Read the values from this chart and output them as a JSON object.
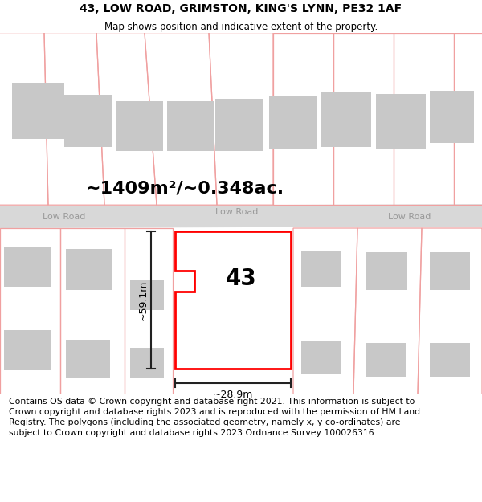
{
  "title": "43, LOW ROAD, GRIMSTON, KING'S LYNN, PE32 1AF",
  "subtitle": "Map shows position and indicative extent of the property.",
  "area_label": "~1409m²/~0.348ac.",
  "dim_width": "~28.9m",
  "dim_height": "~59.1m",
  "street_label": "Low Road",
  "number_label": "43",
  "footer": "Contains OS data © Crown copyright and database right 2021. This information is subject to Crown copyright and database rights 2023 and is reproduced with the permission of HM Land Registry. The polygons (including the associated geometry, namely x, y co-ordinates) are subject to Crown copyright and database rights 2023 Ordnance Survey 100026316.",
  "title_fontsize": 10,
  "subtitle_fontsize": 8.5,
  "footer_fontsize": 7.8,
  "area_fontsize": 16,
  "dim_fontsize": 9,
  "number_fontsize": 20,
  "road_label_fontsize": 8
}
